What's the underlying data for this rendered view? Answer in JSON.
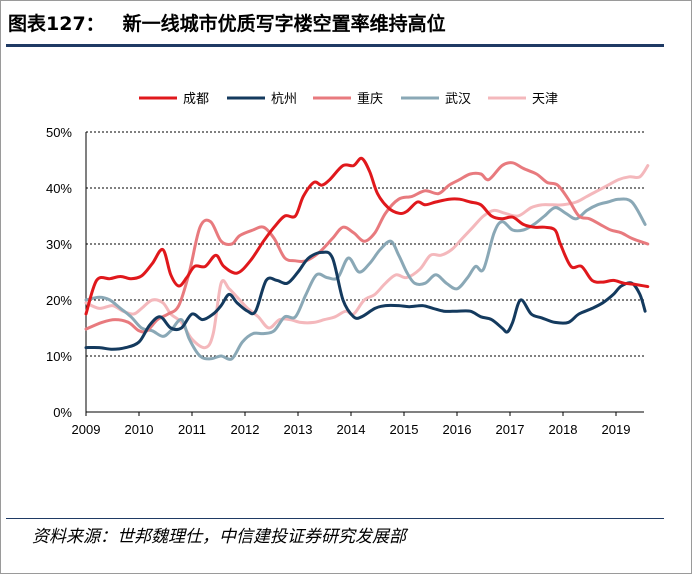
{
  "header": {
    "label": "图表127：",
    "title": "新一线城市优质写字楼空置率维持高位"
  },
  "source": "资料来源：世邦魏理仕，中信建投证券研究发展部",
  "colors": {
    "title_rule": "#1f3a64",
    "gridline": "#000000"
  },
  "chart_data": {
    "type": "line",
    "ylim": [
      0,
      50
    ],
    "yticks": [
      "0%",
      "10%",
      "20%",
      "30%",
      "40%",
      "50%"
    ],
    "xticks": [
      "2009",
      "2010",
      "2011",
      "2012",
      "2013",
      "2014",
      "2015",
      "2016",
      "2017",
      "2018",
      "2019"
    ],
    "xlim": [
      2009,
      2019.6
    ],
    "grid": "horizontal-dashed",
    "legend_position": "top",
    "series": [
      {
        "name": "成都",
        "color": "#e0181c",
        "width": 3,
        "points": [
          [
            2009.0,
            17.5
          ],
          [
            2009.2,
            23.5
          ],
          [
            2009.45,
            23.8
          ],
          [
            2009.65,
            24.2
          ],
          [
            2009.85,
            23.8
          ],
          [
            2010.05,
            24.3
          ],
          [
            2010.25,
            26.5
          ],
          [
            2010.45,
            29
          ],
          [
            2010.6,
            24.5
          ],
          [
            2010.75,
            22.5
          ],
          [
            2010.9,
            24
          ],
          [
            2011.05,
            26
          ],
          [
            2011.25,
            26
          ],
          [
            2011.45,
            28
          ],
          [
            2011.6,
            26
          ],
          [
            2011.85,
            24.8
          ],
          [
            2012.1,
            27
          ],
          [
            2012.35,
            30.5
          ],
          [
            2012.55,
            33
          ],
          [
            2012.75,
            35
          ],
          [
            2012.95,
            35
          ],
          [
            2013.1,
            38.5
          ],
          [
            2013.3,
            41
          ],
          [
            2013.45,
            40.5
          ],
          [
            2013.6,
            41.5
          ],
          [
            2013.85,
            44
          ],
          [
            2014.05,
            44
          ],
          [
            2014.2,
            45.3
          ],
          [
            2014.35,
            43
          ],
          [
            2014.5,
            39
          ],
          [
            2014.7,
            36.5
          ],
          [
            2014.9,
            35.5
          ],
          [
            2015.05,
            35.8
          ],
          [
            2015.25,
            37.5
          ],
          [
            2015.4,
            37
          ],
          [
            2015.6,
            37.5
          ],
          [
            2015.85,
            38
          ],
          [
            2016.05,
            38
          ],
          [
            2016.25,
            37.5
          ],
          [
            2016.45,
            37
          ],
          [
            2016.65,
            35
          ],
          [
            2016.85,
            34.5
          ],
          [
            2017.05,
            34.8
          ],
          [
            2017.25,
            33.5
          ],
          [
            2017.45,
            33
          ],
          [
            2017.65,
            33
          ],
          [
            2017.85,
            32.5
          ],
          [
            2017.95,
            30
          ],
          [
            2018.15,
            26
          ],
          [
            2018.35,
            26
          ],
          [
            2018.55,
            23.5
          ],
          [
            2018.75,
            23.2
          ],
          [
            2018.95,
            23.5
          ],
          [
            2019.15,
            23
          ],
          [
            2019.35,
            22.8
          ],
          [
            2019.6,
            22.4
          ]
        ]
      },
      {
        "name": "杭州",
        "color": "#143a5e",
        "width": 3,
        "points": [
          [
            2009.0,
            11.5
          ],
          [
            2009.25,
            11.5
          ],
          [
            2009.5,
            11.2
          ],
          [
            2009.75,
            11.5
          ],
          [
            2010.0,
            12.5
          ],
          [
            2010.2,
            15.5
          ],
          [
            2010.4,
            17
          ],
          [
            2010.6,
            15
          ],
          [
            2010.8,
            15
          ],
          [
            2011.0,
            17.5
          ],
          [
            2011.2,
            16.5
          ],
          [
            2011.4,
            17.5
          ],
          [
            2011.55,
            19
          ],
          [
            2011.7,
            21
          ],
          [
            2011.85,
            19.5
          ],
          [
            2012.05,
            18
          ],
          [
            2012.2,
            18
          ],
          [
            2012.4,
            23.5
          ],
          [
            2012.6,
            23.5
          ],
          [
            2012.8,
            23
          ],
          [
            2013.0,
            25
          ],
          [
            2013.2,
            27.5
          ],
          [
            2013.45,
            28.5
          ],
          [
            2013.65,
            27.5
          ],
          [
            2013.85,
            20
          ],
          [
            2014.05,
            17
          ],
          [
            2014.2,
            17
          ],
          [
            2014.45,
            18.5
          ],
          [
            2014.65,
            19
          ],
          [
            2014.9,
            19
          ],
          [
            2015.1,
            18.8
          ],
          [
            2015.35,
            19
          ],
          [
            2015.55,
            18.5
          ],
          [
            2015.75,
            18
          ],
          [
            2016.0,
            18
          ],
          [
            2016.25,
            18
          ],
          [
            2016.45,
            17
          ],
          [
            2016.65,
            16.5
          ],
          [
            2016.85,
            15
          ],
          [
            2016.95,
            14.3
          ],
          [
            2017.05,
            16
          ],
          [
            2017.2,
            20
          ],
          [
            2017.4,
            17.5
          ],
          [
            2017.6,
            16.8
          ],
          [
            2017.85,
            16
          ],
          [
            2018.1,
            16
          ],
          [
            2018.3,
            17.5
          ],
          [
            2018.55,
            18.5
          ],
          [
            2018.75,
            19.5
          ],
          [
            2018.95,
            21
          ],
          [
            2019.1,
            22.5
          ],
          [
            2019.3,
            23
          ],
          [
            2019.45,
            21
          ],
          [
            2019.55,
            18
          ]
        ]
      },
      {
        "name": "重庆",
        "color": "#e87a7e",
        "width": 3,
        "points": [
          [
            2009.0,
            14.8
          ],
          [
            2009.3,
            16
          ],
          [
            2009.55,
            16.5
          ],
          [
            2009.8,
            16
          ],
          [
            2010.0,
            14.5
          ],
          [
            2010.15,
            14.5
          ],
          [
            2010.35,
            16.5
          ],
          [
            2010.55,
            17.5
          ],
          [
            2010.75,
            19
          ],
          [
            2010.95,
            25
          ],
          [
            2011.15,
            33
          ],
          [
            2011.35,
            34
          ],
          [
            2011.55,
            30.5
          ],
          [
            2011.75,
            30
          ],
          [
            2011.9,
            31.5
          ],
          [
            2012.15,
            32.5
          ],
          [
            2012.35,
            33
          ],
          [
            2012.55,
            31
          ],
          [
            2012.75,
            27.5
          ],
          [
            2012.95,
            27
          ],
          [
            2013.15,
            27
          ],
          [
            2013.4,
            28.5
          ],
          [
            2013.65,
            31
          ],
          [
            2013.85,
            33
          ],
          [
            2014.05,
            32
          ],
          [
            2014.25,
            30.5
          ],
          [
            2014.45,
            32
          ],
          [
            2014.65,
            35.5
          ],
          [
            2014.9,
            38
          ],
          [
            2015.15,
            38.5
          ],
          [
            2015.4,
            39.5
          ],
          [
            2015.65,
            39
          ],
          [
            2015.85,
            40.5
          ],
          [
            2016.05,
            41.5
          ],
          [
            2016.25,
            42.5
          ],
          [
            2016.45,
            42.5
          ],
          [
            2016.6,
            41.5
          ],
          [
            2016.85,
            44
          ],
          [
            2017.05,
            44.5
          ],
          [
            2017.25,
            43.5
          ],
          [
            2017.5,
            42.5
          ],
          [
            2017.7,
            41
          ],
          [
            2017.9,
            40.5
          ],
          [
            2018.1,
            38
          ],
          [
            2018.3,
            35
          ],
          [
            2018.5,
            34.5
          ],
          [
            2018.7,
            33.5
          ],
          [
            2018.9,
            32.5
          ],
          [
            2019.1,
            32
          ],
          [
            2019.3,
            31
          ],
          [
            2019.6,
            30
          ]
        ]
      },
      {
        "name": "武汉",
        "color": "#8aa8b6",
        "width": 3,
        "points": [
          [
            2009.0,
            20
          ],
          [
            2009.25,
            20.5
          ],
          [
            2009.45,
            20
          ],
          [
            2009.65,
            18.5
          ],
          [
            2009.85,
            17
          ],
          [
            2010.05,
            15
          ],
          [
            2010.25,
            14.5
          ],
          [
            2010.45,
            13.5
          ],
          [
            2010.6,
            14.5
          ],
          [
            2010.8,
            16.5
          ],
          [
            2010.95,
            13
          ],
          [
            2011.15,
            10
          ],
          [
            2011.35,
            9.5
          ],
          [
            2011.55,
            10
          ],
          [
            2011.75,
            9.5
          ],
          [
            2011.95,
            12.5
          ],
          [
            2012.15,
            14
          ],
          [
            2012.35,
            14
          ],
          [
            2012.55,
            14.5
          ],
          [
            2012.75,
            17
          ],
          [
            2012.95,
            17
          ],
          [
            2013.15,
            21
          ],
          [
            2013.35,
            24.5
          ],
          [
            2013.55,
            24
          ],
          [
            2013.75,
            24
          ],
          [
            2013.95,
            27.5
          ],
          [
            2014.15,
            25
          ],
          [
            2014.35,
            26.5
          ],
          [
            2014.55,
            29
          ],
          [
            2014.75,
            30.5
          ],
          [
            2014.9,
            28
          ],
          [
            2015.05,
            25
          ],
          [
            2015.2,
            23
          ],
          [
            2015.4,
            23
          ],
          [
            2015.6,
            24.5
          ],
          [
            2015.8,
            23
          ],
          [
            2016.0,
            22
          ],
          [
            2016.2,
            24
          ],
          [
            2016.35,
            26
          ],
          [
            2016.5,
            25.5
          ],
          [
            2016.7,
            32
          ],
          [
            2016.85,
            34
          ],
          [
            2017.05,
            32.5
          ],
          [
            2017.25,
            32.5
          ],
          [
            2017.45,
            33.5
          ],
          [
            2017.65,
            35
          ],
          [
            2017.85,
            36.5
          ],
          [
            2018.05,
            35.5
          ],
          [
            2018.25,
            34.5
          ],
          [
            2018.45,
            36
          ],
          [
            2018.65,
            37
          ],
          [
            2018.85,
            37.5
          ],
          [
            2019.05,
            38
          ],
          [
            2019.3,
            37.5
          ],
          [
            2019.55,
            33.5
          ]
        ]
      },
      {
        "name": "天津",
        "color": "#f4b8bc",
        "width": 3,
        "points": [
          [
            2009.0,
            19.5
          ],
          [
            2009.25,
            18.5
          ],
          [
            2009.5,
            19
          ],
          [
            2009.7,
            18
          ],
          [
            2009.9,
            17.5
          ],
          [
            2010.05,
            18.5
          ],
          [
            2010.25,
            20
          ],
          [
            2010.45,
            19.5
          ],
          [
            2010.6,
            17.5
          ],
          [
            2010.8,
            16
          ],
          [
            2011.0,
            13
          ],
          [
            2011.25,
            11.5
          ],
          [
            2011.4,
            14
          ],
          [
            2011.55,
            23
          ],
          [
            2011.7,
            22
          ],
          [
            2011.9,
            20
          ],
          [
            2012.05,
            18.5
          ],
          [
            2012.25,
            17
          ],
          [
            2012.45,
            15
          ],
          [
            2012.65,
            16.5
          ],
          [
            2012.85,
            16.5
          ],
          [
            2013.05,
            16
          ],
          [
            2013.3,
            16
          ],
          [
            2013.5,
            16.5
          ],
          [
            2013.7,
            17
          ],
          [
            2013.9,
            18
          ],
          [
            2014.05,
            17.5
          ],
          [
            2014.25,
            20
          ],
          [
            2014.45,
            21
          ],
          [
            2014.65,
            23
          ],
          [
            2014.85,
            24.5
          ],
          [
            2015.05,
            24
          ],
          [
            2015.3,
            25.5
          ],
          [
            2015.5,
            28
          ],
          [
            2015.7,
            28
          ],
          [
            2015.9,
            29
          ],
          [
            2016.1,
            31
          ],
          [
            2016.3,
            33
          ],
          [
            2016.5,
            35
          ],
          [
            2016.7,
            36
          ],
          [
            2016.9,
            35.5
          ],
          [
            2017.15,
            35
          ],
          [
            2017.4,
            36.5
          ],
          [
            2017.6,
            37
          ],
          [
            2017.8,
            37
          ],
          [
            2018.0,
            37
          ],
          [
            2018.25,
            37.5
          ],
          [
            2018.45,
            38.5
          ],
          [
            2018.65,
            39.5
          ],
          [
            2018.85,
            40.5
          ],
          [
            2019.05,
            41.5
          ],
          [
            2019.25,
            42
          ],
          [
            2019.45,
            42
          ],
          [
            2019.6,
            44
          ]
        ]
      }
    ]
  }
}
